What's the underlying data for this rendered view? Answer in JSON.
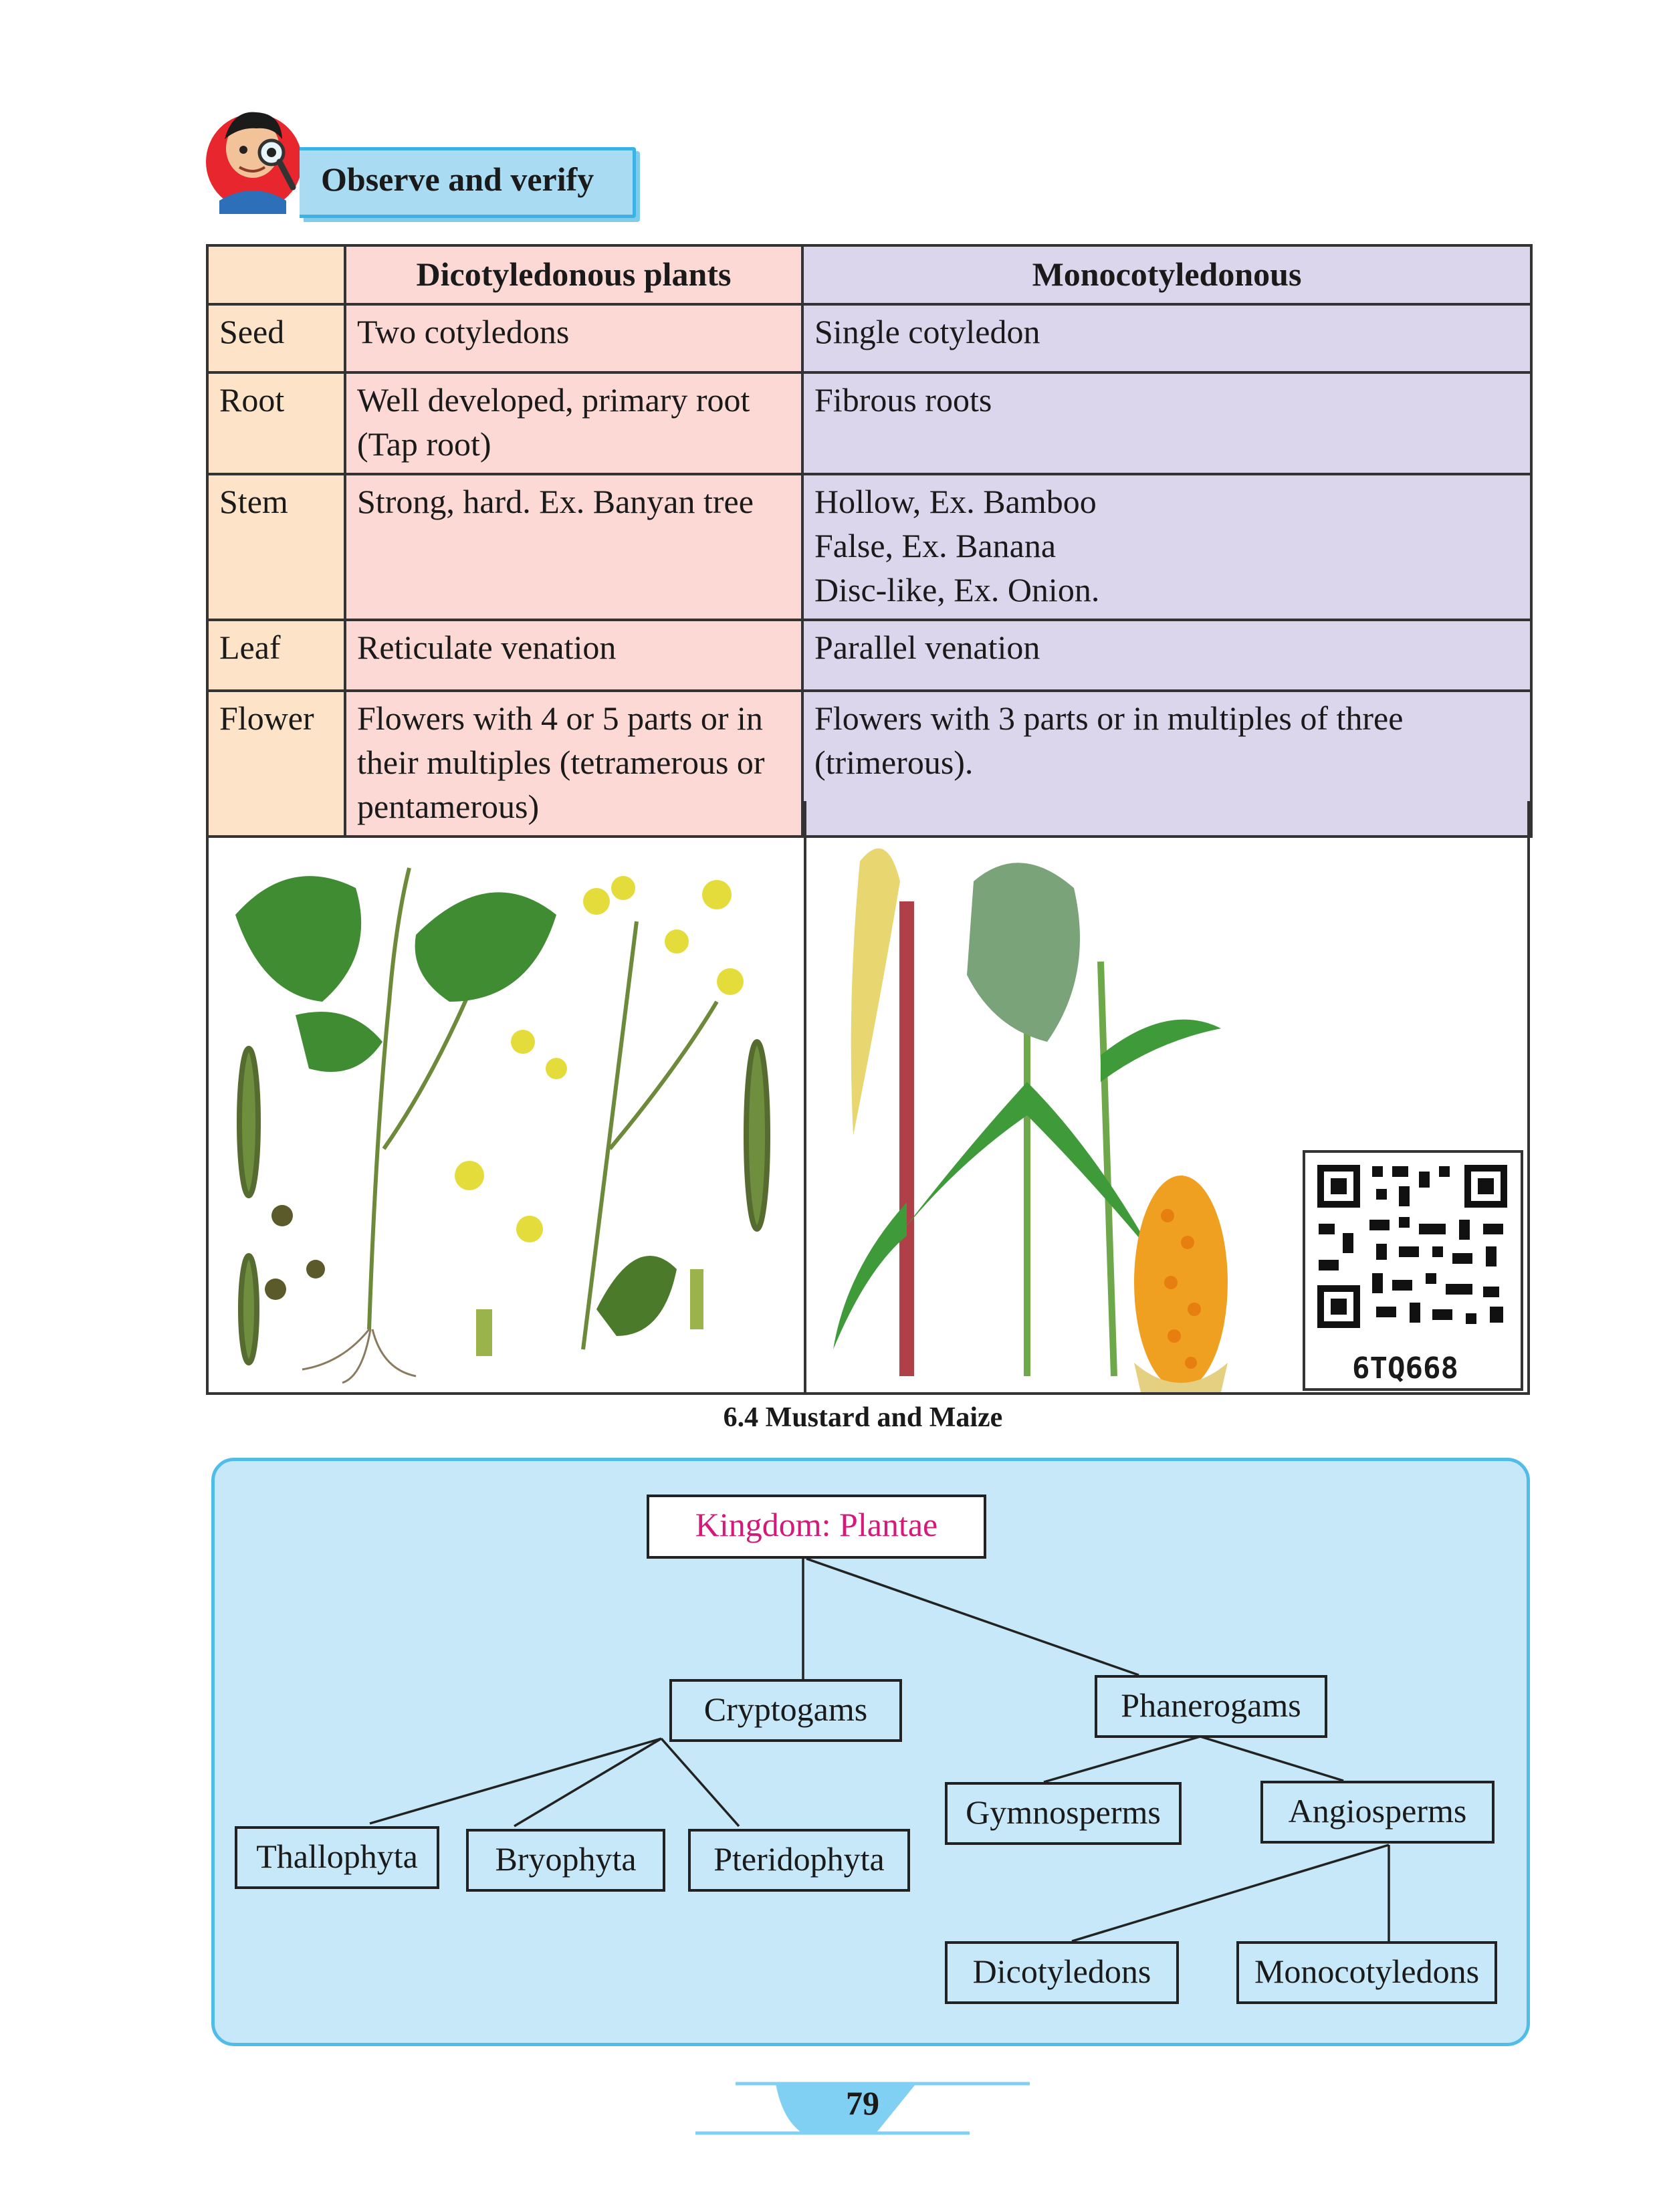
{
  "activity": {
    "label": "Observe and verify",
    "icon": "boy-with-magnifier-icon"
  },
  "table": {
    "headers": [
      "",
      "Dicotyledonous plants",
      "Monocotyledonous"
    ],
    "rows": [
      {
        "feature": "Seed",
        "dicot": [
          "Two cotyledons"
        ],
        "monocot": [
          "Single cotyledon"
        ]
      },
      {
        "feature": "Root",
        "dicot": [
          "Well developed, primary root",
          "(Tap root)"
        ],
        "monocot": [
          "Fibrous roots"
        ]
      },
      {
        "feature": "Stem",
        "dicot": [
          "Strong, hard. Ex. Banyan tree"
        ],
        "monocot": [
          "Hollow, Ex. Bamboo",
          "False, Ex. Banana",
          "Disc-like, Ex. Onion."
        ]
      },
      {
        "feature": "Leaf",
        "dicot": [
          "Reticulate venation"
        ],
        "monocot": [
          "Parallel venation"
        ]
      },
      {
        "feature": "Flower",
        "dicot": [
          "Flowers with 4 or 5 parts or in their multiples (tetramerous or pentamerous)"
        ],
        "monocot": [
          "Flowers with 3 parts or in multiples of three (trimerous)."
        ]
      }
    ]
  },
  "figure": {
    "caption": "6.4 Mustard and Maize",
    "left_image": "mustard-plant-illustration",
    "right_image": "maize-plant-illustration",
    "qr_code_text": "6TQ668"
  },
  "diagram": {
    "root": "Kingdom: Plantae",
    "level1": [
      "Cryptogams",
      "Phanerogams"
    ],
    "cryptogams_children": [
      "Thallophyta",
      "Bryophyta",
      "Pteridophyta"
    ],
    "phanerogams_children": [
      "Gymnosperms",
      "Angiosperms"
    ],
    "angiosperms_children": [
      "Dicotyledons",
      "Monocotyledons"
    ]
  },
  "page_number": "79",
  "colors": {
    "accent_blue": "#4fbde8",
    "diagram_fill": "#c6e8f8",
    "root_text": "#d4197a",
    "dicot_fill": "#fcd9d4",
    "monocot_fill": "#dcd6ec",
    "feature_fill": "#fde3c8"
  }
}
